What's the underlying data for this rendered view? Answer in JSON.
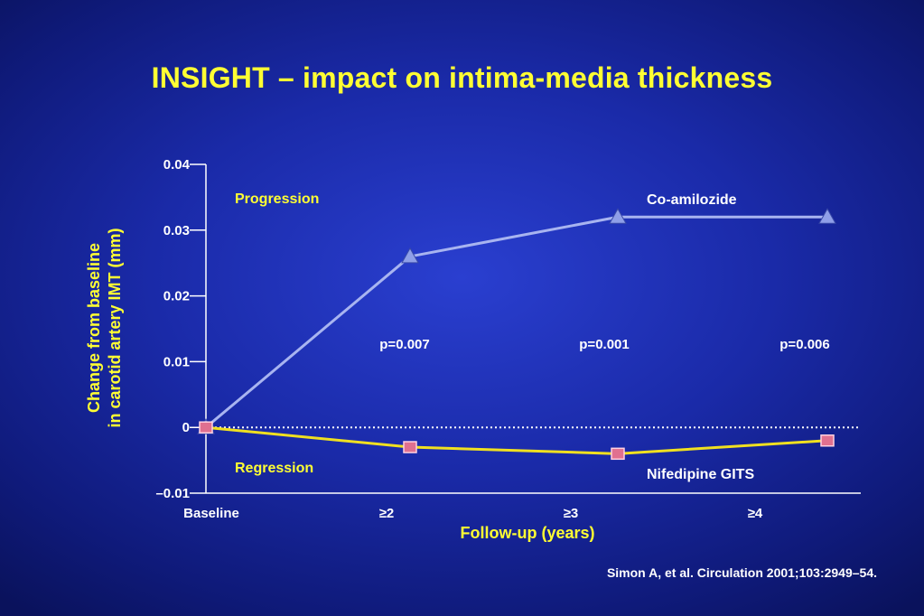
{
  "slide": {
    "title": "INSIGHT – impact on intima-media thickness",
    "citation": "Simon A, et al. Circulation 2001;103:2949–54."
  },
  "chart_data": {
    "type": "line",
    "ylabel_line1": "Change from baseline",
    "ylabel_line2": "in carotid artery IMT (mm)",
    "xlabel": "Follow-up (years)",
    "categories": [
      "Baseline",
      "≥2",
      "≥3",
      "≥4"
    ],
    "ylim": [
      -0.01,
      0.04
    ],
    "yticks": [
      0.04,
      0.03,
      0.02,
      0.01,
      0,
      -0.01
    ],
    "ytick_labels": [
      "0.04",
      "0.03",
      "0.02",
      "0.01",
      "0",
      "–0.01"
    ],
    "zero_line": "dotted",
    "series": [
      {
        "name": "Co-amilozide",
        "marker": "triangle",
        "color": "#a8b4f0",
        "values": [
          0,
          0.026,
          0.032,
          0.032
        ]
      },
      {
        "name": "Nifedipine GITS",
        "marker": "square",
        "color": "#f0e020",
        "values": [
          0,
          -0.003,
          -0.004,
          -0.002
        ]
      }
    ],
    "annotations": {
      "progression": "Progression",
      "regression": "Regression",
      "pvalues": [
        "p=0.007",
        "p=0.001",
        "p=0.006"
      ]
    }
  }
}
